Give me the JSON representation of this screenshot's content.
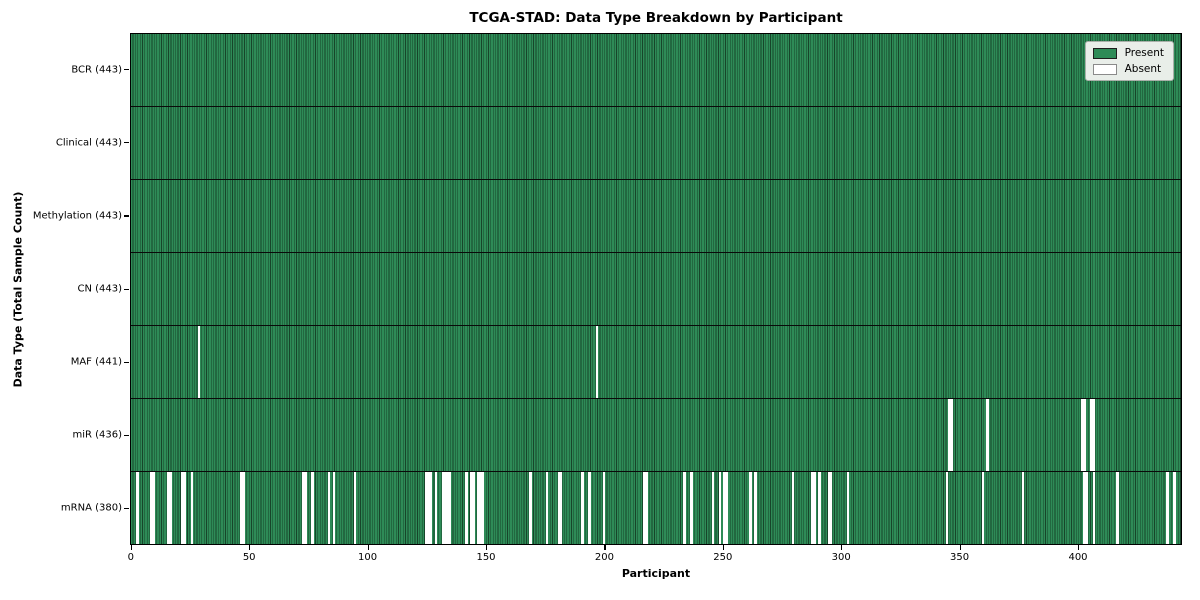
{
  "title": "TCGA-STAD: Data Type Breakdown by Participant",
  "xlabel": "Participant",
  "ylabel": "Data Type (Total Sample Count)",
  "legend": {
    "present_label": "Present",
    "absent_label": "Absent",
    "position": "upper right"
  },
  "colors": {
    "present": "#2e8b57",
    "absent": "#ffffff",
    "bar_edge": "#17452a",
    "legend_bg": "#e9eee9",
    "spine": "#000000"
  },
  "x_ticks": [
    0,
    50,
    100,
    150,
    200,
    250,
    300,
    350,
    400
  ],
  "chart_data": {
    "type": "heatmap",
    "title": "TCGA-STAD: Data Type Breakdown by Participant",
    "xlabel": "Participant",
    "ylabel": "Data Type (Total Sample Count)",
    "legend": [
      "Present",
      "Absent"
    ],
    "legend_position": "upper right",
    "grid": false,
    "n_participants": 443,
    "x_range": [
      0,
      443
    ],
    "x_ticks": [
      0,
      50,
      100,
      150,
      200,
      250,
      300,
      350,
      400
    ],
    "rows": [
      {
        "data_type": "BCR",
        "label": "BCR (443)",
        "present_count": 443,
        "absent_participants": []
      },
      {
        "data_type": "Clinical",
        "label": "Clinical (443)",
        "present_count": 443,
        "absent_participants": []
      },
      {
        "data_type": "Methylation",
        "label": "Methylation (443)",
        "present_count": 443,
        "absent_participants": []
      },
      {
        "data_type": "CN",
        "label": "CN (443)",
        "present_count": 443,
        "absent_participants": []
      },
      {
        "data_type": "MAF",
        "label": "MAF (441)",
        "present_count": 441,
        "absent_participants": [
          28,
          196
        ]
      },
      {
        "data_type": "miR",
        "label": "miR (436)",
        "present_count": 436,
        "absent_participants": [
          345,
          346,
          361,
          401,
          402,
          405,
          406
        ]
      },
      {
        "data_type": "mRNA",
        "label": "mRNA (380)",
        "present_count": 380,
        "absent_participants": [
          2,
          8,
          9,
          15,
          16,
          21,
          22,
          25,
          46,
          47,
          72,
          73,
          76,
          83,
          85,
          94,
          124,
          125,
          126,
          128,
          131,
          132,
          133,
          134,
          141,
          143,
          144,
          146,
          147,
          148,
          168,
          175,
          180,
          181,
          190,
          193,
          199,
          216,
          217,
          233,
          236,
          245,
          248,
          250,
          251,
          261,
          263,
          279,
          287,
          288,
          290,
          294,
          295,
          302,
          344,
          359,
          376,
          402,
          403,
          406,
          416,
          437,
          440
        ]
      }
    ]
  }
}
